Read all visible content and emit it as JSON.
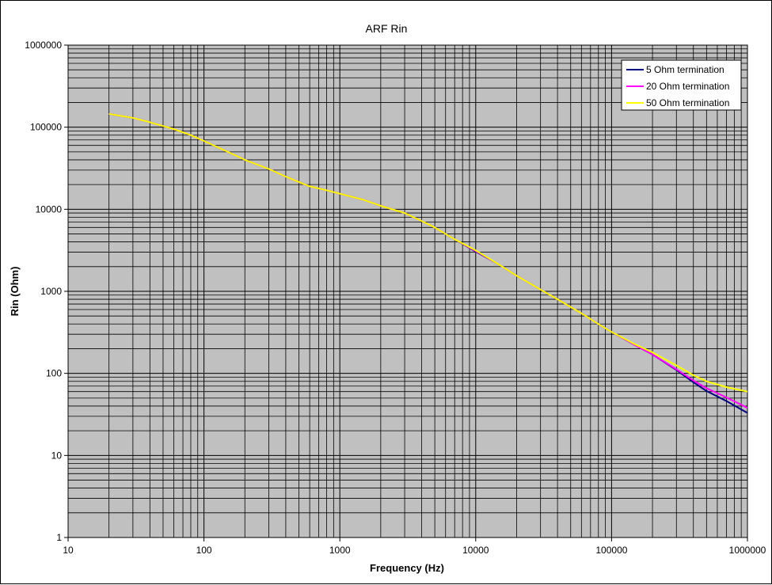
{
  "chart_data": {
    "type": "line",
    "title": "ARF Rin",
    "xlabel": "Frequency (Hz)",
    "ylabel": "Rin (Ohm)",
    "x_scale": "log",
    "y_scale": "log",
    "xlim": [
      10,
      1000000
    ],
    "ylim": [
      1,
      1000000
    ],
    "x_ticks": [
      "10",
      "100",
      "1000",
      "10000",
      "100000",
      "1000000"
    ],
    "y_ticks": [
      "1",
      "10",
      "100",
      "1000",
      "10000",
      "100000",
      "1000000"
    ],
    "grid": true,
    "legend_position": "top-right",
    "plot_background": "#c0c0c0",
    "x": [
      20,
      30,
      40,
      60,
      80,
      100,
      150,
      200,
      300,
      400,
      600,
      800,
      1000,
      1500,
      2000,
      3000,
      4000,
      5000,
      7000,
      10000,
      15000,
      20000,
      30000,
      40000,
      60000,
      80000,
      100000,
      150000,
      200000,
      300000,
      400000,
      500000,
      700000,
      1000000
    ],
    "series": [
      {
        "name": "5 Ohm termination",
        "color": "#000080",
        "values": [
          145000,
          130000,
          115000,
          95000,
          80000,
          68000,
          50000,
          40000,
          31000,
          25000,
          19000,
          17000,
          15500,
          13000,
          11000,
          9000,
          7200,
          6000,
          4300,
          3050,
          2100,
          1550,
          1050,
          800,
          540,
          400,
          320,
          220,
          170,
          110,
          78,
          61,
          46,
          33
        ]
      },
      {
        "name": "20 Ohm termination",
        "color": "#ff00ff",
        "values": [
          145000,
          130000,
          115000,
          95000,
          80000,
          68000,
          50000,
          40000,
          31000,
          25000,
          19000,
          17000,
          15500,
          13000,
          11000,
          9000,
          7200,
          6000,
          4300,
          3100,
          2100,
          1550,
          1050,
          800,
          540,
          400,
          320,
          220,
          170,
          112,
          82,
          66,
          51,
          38
        ]
      },
      {
        "name": "50 Ohm termination",
        "color": "#ffff00",
        "values": [
          145000,
          130000,
          115000,
          95000,
          80000,
          68000,
          50000,
          40000,
          31000,
          25000,
          19000,
          17000,
          15500,
          13000,
          11000,
          9000,
          7200,
          6000,
          4300,
          3150,
          2100,
          1550,
          1050,
          800,
          540,
          400,
          320,
          225,
          180,
          125,
          95,
          80,
          68,
          60
        ]
      }
    ]
  }
}
